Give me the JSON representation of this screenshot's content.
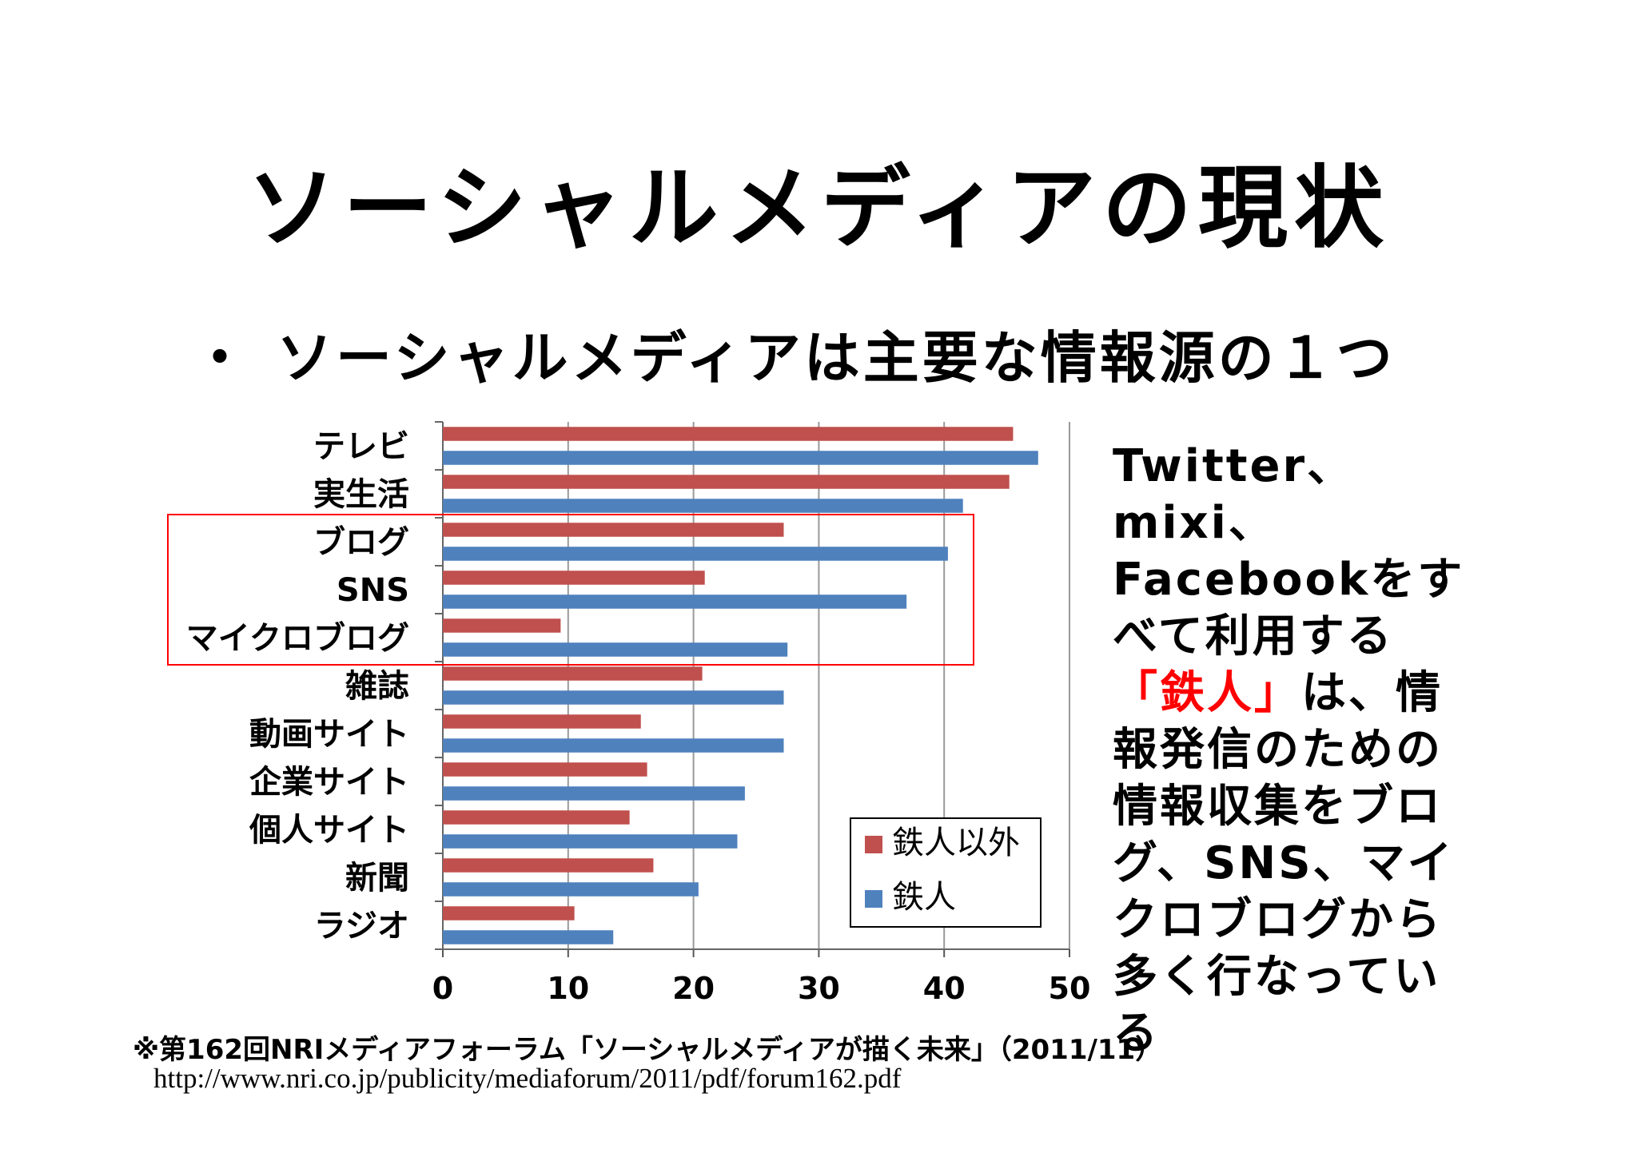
{
  "slide": {
    "title": "ソーシャルメディアの現状",
    "bullet_mark": "・",
    "bullet_text": "ソーシャルメディアは主要な情報源の１つ",
    "side_note": {
      "part1": "Twitter、mixi、Facebookをすべて利用する",
      "highlight": "「鉄人」",
      "part2": "は、情報発信のための情報収集をブログ、SNS、マイクロブログから多く行なっている"
    },
    "source": "※第162回NRIメディアフォーラム「ソーシャルメディアが描く未来」（2011/11）",
    "url": "http://www.nri.co.jp/publicity/mediaforum/2011/pdf/forum162.pdf"
  },
  "chart_data": {
    "type": "bar",
    "orientation": "horizontal",
    "categories": [
      "テレビ",
      "実生活",
      "ブログ",
      "SNS",
      "マイクロブログ",
      "雑誌",
      "動画サイト",
      "企業サイト",
      "個人サイト",
      "新聞",
      "ラジオ"
    ],
    "series": [
      {
        "name": "鉄人以外",
        "color": "#c0504d",
        "values": [
          45.5,
          45.2,
          27.2,
          20.9,
          9.4,
          20.7,
          15.8,
          16.3,
          14.9,
          16.8,
          10.5
        ]
      },
      {
        "name": "鉄人",
        "color": "#4f81bd",
        "values": [
          47.5,
          41.5,
          40.3,
          37.0,
          27.5,
          27.2,
          27.2,
          24.1,
          23.5,
          20.4,
          13.6
        ]
      }
    ],
    "xlim": [
      0,
      50
    ],
    "xticks": [
      0,
      10,
      20,
      30,
      40,
      50
    ],
    "grid": true,
    "legend": "bottom-right",
    "highlight_box": [
      "ブログ",
      "SNS",
      "マイクロブログ"
    ],
    "highlight_color": "#ff0000"
  }
}
